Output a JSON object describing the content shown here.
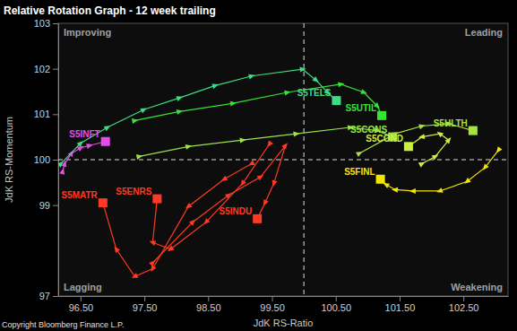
{
  "chart_data": {
    "type": "line",
    "title": "Relative Rotation Graph - 12 week trailing",
    "x_label": "JdK RS-Ratio",
    "y_label": "JdK RS-Momentum",
    "xlim": [
      96.15,
      103.2
    ],
    "ylim": [
      97,
      103
    ],
    "xticks": [
      {
        "value": 96.5,
        "label": "96.50"
      },
      {
        "value": 97.5,
        "label": "97.50"
      },
      {
        "value": 98.5,
        "label": "98.50"
      },
      {
        "value": 99.5,
        "label": "99.50"
      },
      {
        "value": 100.5,
        "label": "100.50"
      },
      {
        "value": 101.5,
        "label": "101.50"
      },
      {
        "value": 102.5,
        "label": "102.50"
      }
    ],
    "yticks": [
      97,
      99,
      100,
      101,
      102,
      103
    ],
    "reference": {
      "x": 100,
      "y": 100
    },
    "annotations": [
      "Improving",
      "Leading",
      "Lagging",
      "Weakening",
      "Copyright Bloomberg Finance L.P."
    ],
    "series": [
      {
        "name": "S5INFT",
        "color": "#e84ce8",
        "x": [
          96.22,
          96.25,
          96.36,
          96.5,
          96.64,
          96.89
        ],
        "values": [
          99.74,
          99.91,
          100.14,
          100.26,
          100.31,
          100.4
        ]
      },
      {
        "name": "S5TELS",
        "color": "#3ddc84",
        "x": [
          96.19,
          96.5,
          96.92,
          97.49,
          98.05,
          98.61,
          99.18,
          99.98,
          100.19,
          100.37,
          100.51
        ],
        "values": [
          99.91,
          100.36,
          100.71,
          101.1,
          101.36,
          101.63,
          101.84,
          101.99,
          101.75,
          101.48,
          101.3
        ]
      },
      {
        "name": "S5UTIL",
        "color": "#33e633",
        "x": [
          97.35,
          98.05,
          98.89,
          99.74,
          100.58,
          100.94,
          101.15,
          101.22
        ],
        "values": [
          100.86,
          101.06,
          101.24,
          101.48,
          101.66,
          101.48,
          101.18,
          100.97
        ]
      },
      {
        "name": "S5CONS",
        "color": "#9be34a",
        "x": [
          97.42,
          98.19,
          99.04,
          99.88,
          100.73,
          101.15,
          101.39
        ],
        "values": [
          100.07,
          100.29,
          100.43,
          100.57,
          100.71,
          100.64,
          100.5
        ]
      },
      {
        "name": "S5COND",
        "color": "#c8f03c",
        "x": [
          101.85,
          102.06,
          102.27,
          102.13,
          101.85,
          101.64
        ],
        "values": [
          99.91,
          100.07,
          100.43,
          100.57,
          100.5,
          100.29
        ]
      },
      {
        "name": "S5HLTH",
        "color": "#a6e33c",
        "x": [
          100.87,
          101.43,
          101.85,
          102.27,
          102.65
        ],
        "values": [
          100.14,
          100.57,
          100.74,
          100.79,
          100.64
        ]
      },
      {
        "name": "S5FINL",
        "color": "#f2e600",
        "x": [
          103.05,
          102.84,
          102.56,
          102.13,
          101.71,
          101.43,
          101.29,
          101.2
        ],
        "values": [
          100.21,
          99.83,
          99.52,
          99.31,
          99.31,
          99.34,
          99.45,
          99.57
        ]
      },
      {
        "name": "S5INDU",
        "color": "#ff3a24",
        "x": [
          97.63,
          98.26,
          98.82,
          99.32,
          99.71,
          99.53,
          99.39,
          99.27
        ],
        "values": [
          97.73,
          98.63,
          99.22,
          99.62,
          100.31,
          99.48,
          99.05,
          98.7
        ]
      },
      {
        "name": "S5MATR",
        "color": "#ff3a24",
        "x": [
          99.18,
          98.75,
          98.19,
          97.63,
          97.35,
          97.06,
          96.85
        ],
        "values": [
          99.91,
          99.57,
          98.97,
          97.6,
          97.43,
          98.03,
          99.05
        ]
      },
      {
        "name": "S5ENRS",
        "color": "#ff3a24",
        "x": [
          99.46,
          99.04,
          98.47,
          97.91,
          97.63,
          97.7
        ],
        "values": [
          100.34,
          99.48,
          98.63,
          98.03,
          98.18,
          99.14
        ]
      }
    ]
  }
}
